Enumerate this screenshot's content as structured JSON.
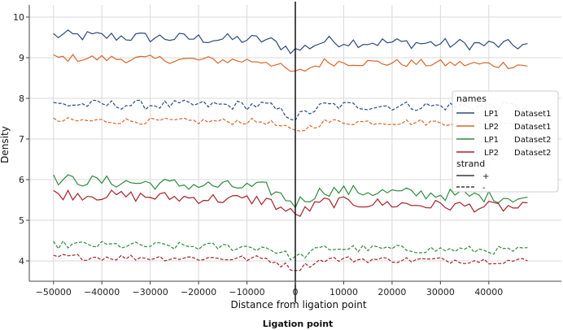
{
  "caption": "Ligation point",
  "colors": {
    "navy": "#2b4a7e",
    "orange": "#d9662a",
    "green": "#2e8b3e",
    "crimson": "#a5222a",
    "grid": "#d9d9d9",
    "ligation_line": "#111111"
  },
  "chart_data": {
    "type": "line",
    "xlabel": "Distance from ligation point",
    "ylabel": "Density",
    "xlim": [
      -55000,
      55000
    ],
    "ylim": [
      3.5,
      10.3
    ],
    "x_ticks": [
      -50000,
      -40000,
      -30000,
      -20000,
      -10000,
      0,
      10000,
      20000,
      30000,
      40000
    ],
    "x_tick_labels": [
      "−50000",
      "−40000",
      "−30000",
      "−20000",
      "−10000",
      "0",
      "10000",
      "20000",
      "30000",
      "40000"
    ],
    "y_ticks": [
      4,
      5,
      6,
      7,
      8,
      9,
      10
    ],
    "y_tick_labels": [
      "4",
      "5",
      "6",
      "7",
      "8",
      "9",
      "10"
    ],
    "grid": true,
    "vertical_line_x": 0,
    "legend": {
      "placement": "right",
      "names_title": "names",
      "strand_title": "strand",
      "names_entries": [
        {
          "label": "LP1",
          "dataset": "Dataset1",
          "color": "#2b4a7e"
        },
        {
          "label": "LP2",
          "dataset": "Dataset1",
          "color": "#d9662a"
        },
        {
          "label": "LP1",
          "dataset": "Dataset2",
          "color": "#2e8b3e"
        },
        {
          "label": "LP2",
          "dataset": "Dataset2",
          "color": "#a5222a"
        }
      ],
      "strand_entries": [
        {
          "label": "+",
          "dash": "solid"
        },
        {
          "label": "-",
          "dash": "dashed"
        }
      ]
    },
    "series_x": {
      "start": -50000,
      "end": 48000,
      "step": 1000
    },
    "series": [
      {
        "color": "#2b4a7e",
        "dash": "solid",
        "base": 9.55,
        "trend": -0.25,
        "noise": 0.14,
        "dip0": 0.25
      },
      {
        "color": "#d9662a",
        "dash": "solid",
        "base": 9.0,
        "trend": -0.18,
        "noise": 0.1,
        "dip0": 0.3
      },
      {
        "color": "#2b4a7e",
        "dash": "dashed",
        "base": 7.85,
        "trend": -0.05,
        "noise": 0.12,
        "dip0": 0.3
      },
      {
        "color": "#d9662a",
        "dash": "dashed",
        "base": 7.45,
        "trend": -0.05,
        "noise": 0.08,
        "dip0": 0.25
      },
      {
        "color": "#2e8b3e",
        "dash": "solid",
        "base": 6.0,
        "trend": -0.45,
        "noise": 0.15,
        "dip0": 0.35
      },
      {
        "color": "#a5222a",
        "dash": "solid",
        "base": 5.65,
        "trend": -0.35,
        "noise": 0.14,
        "dip0": 0.35
      },
      {
        "color": "#2e8b3e",
        "dash": "dashed",
        "base": 4.4,
        "trend": -0.15,
        "noise": 0.1,
        "dip0": 0.25
      },
      {
        "color": "#a5222a",
        "dash": "dashed",
        "base": 4.1,
        "trend": -0.1,
        "noise": 0.08,
        "dip0": 0.25
      }
    ]
  }
}
